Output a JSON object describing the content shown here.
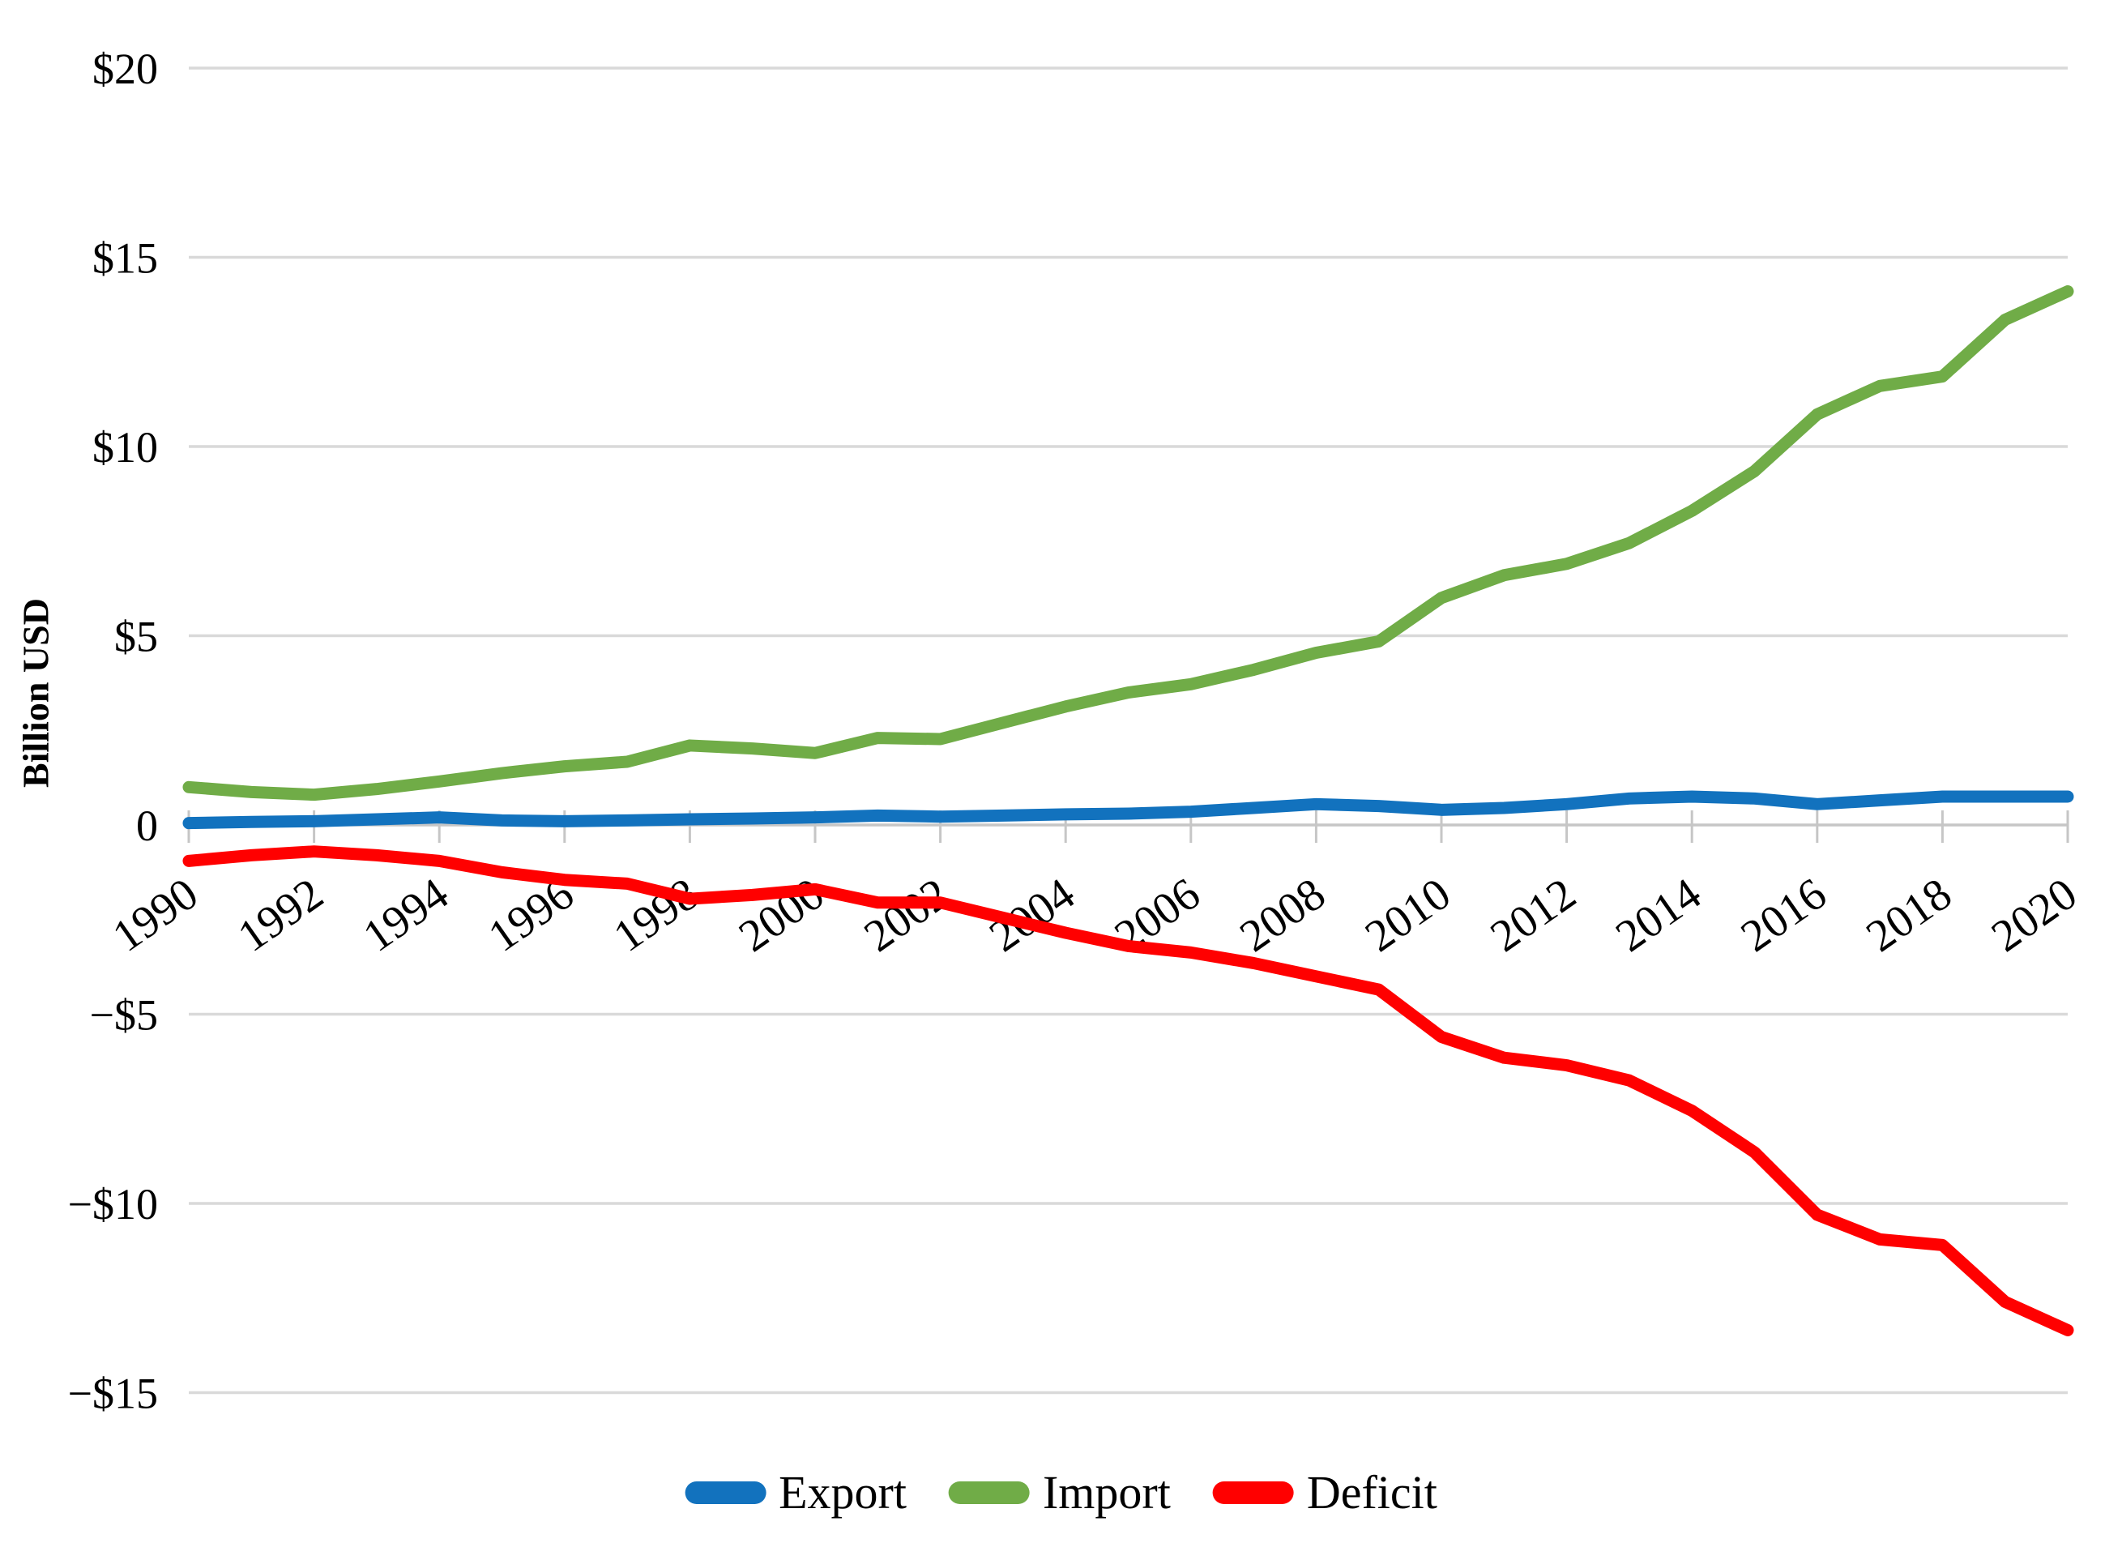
{
  "chart_data": {
    "type": "line",
    "title": "",
    "ylabel": "Billion USD",
    "xlabel": "",
    "x": [
      1990,
      1991,
      1992,
      1993,
      1994,
      1995,
      1996,
      1997,
      1998,
      1999,
      2000,
      2001,
      2002,
      2003,
      2004,
      2005,
      2006,
      2007,
      2008,
      2009,
      2010,
      2011,
      2012,
      2013,
      2014,
      2015,
      2016,
      2017,
      2018,
      2019,
      2020
    ],
    "x_tick_labels": [
      "1990",
      "1992",
      "1994",
      "1996",
      "1998",
      "2000",
      "2002",
      "2004",
      "2006",
      "2008",
      "2010",
      "2012",
      "2014",
      "2016",
      "2018",
      "2020"
    ],
    "y_tick_values": [
      20,
      15,
      10,
      5,
      0,
      -5,
      -10,
      -15
    ],
    "y_tick_labels": [
      "$20",
      "$15",
      "$10",
      "$5",
      "0",
      "−$5",
      "−$10",
      "−$15"
    ],
    "ylim": [
      -15,
      20
    ],
    "grid": true,
    "legend_position": "bottom",
    "colors": {
      "gridline": "#D9D9D9",
      "axis": "#C6C6C6",
      "text": "#000000"
    },
    "series": [
      {
        "name": "Export",
        "color": "#1272BE",
        "values": [
          0.05,
          0.08,
          0.1,
          0.15,
          0.2,
          0.12,
          0.1,
          0.12,
          0.15,
          0.17,
          0.2,
          0.25,
          0.22,
          0.25,
          0.28,
          0.3,
          0.35,
          0.45,
          0.55,
          0.5,
          0.4,
          0.45,
          0.55,
          0.7,
          0.75,
          0.7,
          0.55,
          0.65,
          0.75,
          0.75,
          0.75
        ]
      },
      {
        "name": "Import",
        "color": "#70AC47",
        "values": [
          1.0,
          0.87,
          0.8,
          0.95,
          1.15,
          1.37,
          1.55,
          1.67,
          2.1,
          2.02,
          1.9,
          2.3,
          2.27,
          2.7,
          3.13,
          3.5,
          3.72,
          4.1,
          4.55,
          4.85,
          6.0,
          6.6,
          6.9,
          7.45,
          8.3,
          9.35,
          10.85,
          11.6,
          11.85,
          13.35,
          14.1
        ]
      },
      {
        "name": "Deficit",
        "color": "#FF0000",
        "values": [
          -0.95,
          -0.8,
          -0.7,
          -0.8,
          -0.95,
          -1.25,
          -1.45,
          -1.55,
          -1.95,
          -1.85,
          -1.7,
          -2.05,
          -2.05,
          -2.45,
          -2.85,
          -3.2,
          -3.37,
          -3.65,
          -4.0,
          -4.35,
          -5.6,
          -6.15,
          -6.35,
          -6.75,
          -7.55,
          -8.65,
          -10.3,
          -10.95,
          -11.1,
          -12.6,
          -13.35
        ]
      }
    ]
  }
}
